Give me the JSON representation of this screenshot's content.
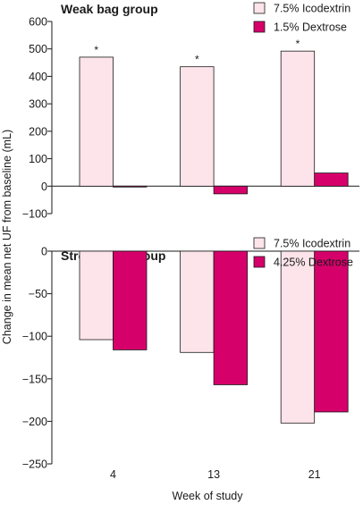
{
  "y_axis_label": "Change in mean net UF from baseline (mL)",
  "x_axis_label": "Week of study",
  "colors": {
    "icodextrin": "#fce4ea",
    "dextrose": "#d6006b",
    "outline": "#1a1a1a"
  },
  "chart_data": [
    {
      "type": "bar",
      "title": "Weak bag group",
      "categories": [
        "4",
        "13",
        "21"
      ],
      "series": [
        {
          "name": "7.5% Icodextrin",
          "values": [
            470,
            435,
            492
          ],
          "color": "#fce4ea"
        },
        {
          "name": "1.5% Dextrose",
          "values": [
            -3,
            -28,
            48
          ],
          "color": "#d6006b"
        }
      ],
      "annotations": [
        "*",
        "*",
        "*"
      ],
      "ylim": [
        -100,
        600
      ],
      "yticks": [
        600,
        500,
        400,
        300,
        200,
        100,
        0,
        -100
      ],
      "ytick_labels": [
        "600",
        "500",
        "400",
        "300",
        "200",
        "100",
        "0",
        "−100"
      ],
      "legend": "top-right"
    },
    {
      "type": "bar",
      "title": "Strong bag group",
      "categories": [
        "4",
        "13",
        "21"
      ],
      "series": [
        {
          "name": "7.5% Icodextrin",
          "values": [
            -104,
            -119,
            -202
          ],
          "color": "#fce4ea"
        },
        {
          "name": "4.25% Dextrose",
          "values": [
            -116,
            -157,
            -189
          ],
          "color": "#d6006b"
        }
      ],
      "ylim": [
        -250,
        0
      ],
      "yticks": [
        0,
        -50,
        -100,
        -150,
        -200,
        -250
      ],
      "ytick_labels": [
        "0",
        "−50",
        "−100",
        "−150",
        "−200",
        "−250"
      ],
      "legend": "top-right"
    }
  ]
}
